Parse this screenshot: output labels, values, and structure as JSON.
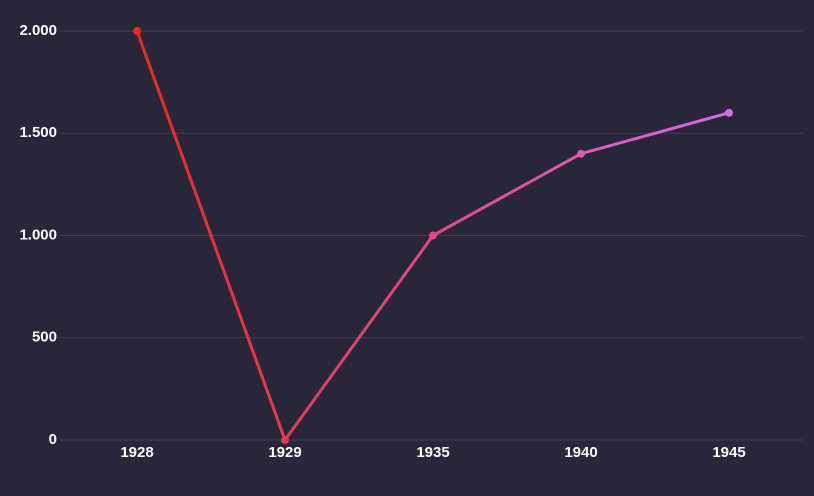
{
  "chart_data": {
    "type": "line",
    "categories": [
      "1928",
      "1929",
      "1935",
      "1940",
      "1945"
    ],
    "values": [
      2000,
      0,
      1000,
      1400,
      1600
    ],
    "gradient": [
      "#e8291f",
      "#d768e6"
    ],
    "ylim": [
      0,
      2000
    ],
    "yticks": [
      0,
      500,
      {
        "value": 1000,
        "label": "1.000"
      },
      {
        "value": 1500,
        "label": "1.500"
      },
      {
        "value": 2000,
        "label": "2.000"
      }
    ],
    "grid": true
  }
}
